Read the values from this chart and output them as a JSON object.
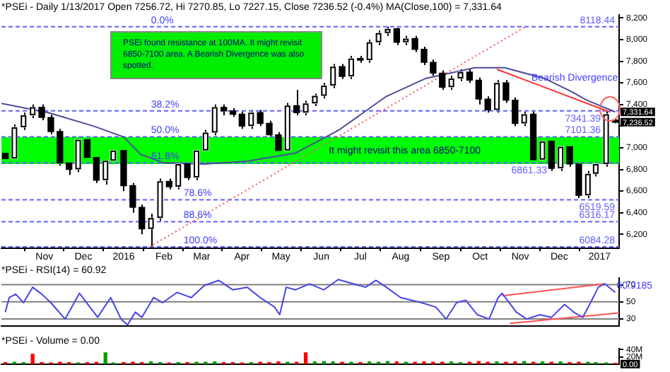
{
  "chart_data": [
    {
      "type": "candlestick",
      "title": "*PSEi - Daily 1/13/2017 Open 7256.72, Hi 7270.85, Lo 7227.15, Close 7236.52 (-0.4%) MA(Close,100) = 7,331.64",
      "color": "#000000",
      "colors": [
        "#000000",
        "#ffffff",
        "#ffffff",
        "#ffffff",
        "#000000",
        "#000000",
        "#000000",
        "#000000",
        "#ffffff",
        "#000000",
        "#000000",
        "#ffffff",
        "#ffffff",
        "#000000",
        "#000000",
        "#000000",
        "#ffffff",
        "#ffffff",
        "#000000",
        "#ffffff",
        "#000000",
        "#ffffff",
        "#ffffff",
        "#ffffff",
        "#000000",
        "#000000",
        "#000000",
        "#ffffff",
        "#000000",
        "#000000",
        "#000000",
        "#ffffff",
        "#000000",
        "#ffffff",
        "#ffffff",
        "#ffffff",
        "#ffffff",
        "#000000",
        "#ffffff",
        "#000000",
        "#ffffff",
        "#ffffff",
        "#ffffff",
        "#000000",
        "#ffffff",
        "#000000",
        "#000000",
        "#000000",
        "#000000",
        "#ffffff",
        "#ffffff",
        "#000000",
        "#000000",
        "#000000",
        "#ffffff",
        "#000000",
        "#000000",
        "#ffffff",
        "#000000",
        "#ffffff",
        "#000000",
        "#ffffff",
        "#000000",
        "#000000",
        "#ffffff",
        "#ffffff",
        "#ffffff",
        "#000000"
      ],
      "x": [
        "2015-10-02",
        "2015-10-09",
        "2015-10-16",
        "2015-10-23",
        "2015-10-30",
        "2015-11-06",
        "2015-11-13",
        "2015-11-20",
        "2015-11-27",
        "2015-12-04",
        "2015-12-11",
        "2015-12-18",
        "2015-12-24",
        "2016-01-01",
        "2016-01-08",
        "2016-01-15",
        "2016-01-22",
        "2016-01-29",
        "2016-02-05",
        "2016-02-12",
        "2016-02-19",
        "2016-02-26",
        "2016-03-04",
        "2016-03-11",
        "2016-03-18",
        "2016-03-25",
        "2016-04-01",
        "2016-04-08",
        "2016-04-15",
        "2016-04-22",
        "2016-04-29",
        "2016-05-06",
        "2016-05-13",
        "2016-05-20",
        "2016-05-27",
        "2016-06-03",
        "2016-06-10",
        "2016-06-17",
        "2016-06-24",
        "2016-07-01",
        "2016-07-08",
        "2016-07-15",
        "2016-07-22",
        "2016-07-29",
        "2016-08-05",
        "2016-08-12",
        "2016-08-19",
        "2016-08-26",
        "2016-09-02",
        "2016-09-09",
        "2016-09-16",
        "2016-09-23",
        "2016-09-30",
        "2016-10-07",
        "2016-10-14",
        "2016-10-21",
        "2016-10-28",
        "2016-11-04",
        "2016-11-11",
        "2016-11-18",
        "2016-11-25",
        "2016-12-02",
        "2016-12-09",
        "2016-12-16",
        "2016-12-23",
        "2016-12-29",
        "2017-01-06",
        "2017-01-13"
      ],
      "ohlc": [
        [
          6950,
          6975,
          6875,
          6900
        ],
        [
          6900,
          7215,
          6875,
          7190
        ],
        [
          7190,
          7325,
          7165,
          7300
        ],
        [
          7300,
          7400,
          7275,
          7375
        ],
        [
          7375,
          7400,
          7255,
          7280
        ],
        [
          7280,
          7305,
          7125,
          7150
        ],
        [
          7150,
          7175,
          6835,
          6860
        ],
        [
          6860,
          6885,
          6750,
          6800
        ],
        [
          6800,
          7100,
          6775,
          7075
        ],
        [
          7075,
          7100,
          6885,
          6910
        ],
        [
          6910,
          6935,
          6675,
          6700
        ],
        [
          6700,
          6905,
          6660,
          6880
        ],
        [
          6880,
          7000,
          6855,
          6975
        ],
        [
          6975,
          7000,
          6600,
          6650
        ],
        [
          6650,
          6675,
          6400,
          6450
        ],
        [
          6450,
          6475,
          6200,
          6250
        ],
        [
          6250,
          6390,
          6084.28,
          6350
        ],
        [
          6350,
          6715,
          6325,
          6690
        ],
        [
          6690,
          6715,
          6615,
          6640
        ],
        [
          6640,
          6875,
          6615,
          6850
        ],
        [
          6850,
          6875,
          6700,
          6725
        ],
        [
          6725,
          7000,
          6700,
          6975
        ],
        [
          6975,
          7165,
          6950,
          7140
        ],
        [
          7140,
          7400,
          7115,
          7375
        ],
        [
          7375,
          7400,
          7300,
          7340
        ],
        [
          7340,
          7365,
          7285,
          7310
        ],
        [
          7310,
          7335,
          7175,
          7200
        ],
        [
          7200,
          7350,
          7175,
          7325
        ],
        [
          7325,
          7350,
          7200,
          7225
        ],
        [
          7225,
          7250,
          7100,
          7120
        ],
        [
          7120,
          7145,
          6950,
          6975
        ],
        [
          6975,
          7415,
          6950,
          7390
        ],
        [
          7390,
          7535,
          7300,
          7325
        ],
        [
          7325,
          7435,
          7300,
          7410
        ],
        [
          7410,
          7500,
          7385,
          7480
        ],
        [
          7480,
          7600,
          7455,
          7575
        ],
        [
          7575,
          7775,
          7550,
          7750
        ],
        [
          7750,
          7775,
          7635,
          7660
        ],
        [
          7660,
          7850,
          7635,
          7825
        ],
        [
          7825,
          7850,
          7785,
          7810
        ],
        [
          7810,
          8000,
          7785,
          7975
        ],
        [
          7975,
          8085,
          7950,
          8060
        ],
        [
          8060,
          8118.44,
          8035,
          8100
        ],
        [
          8100,
          8110,
          7950,
          7975
        ],
        [
          7975,
          8035,
          7950,
          8010
        ],
        [
          8010,
          8035,
          7885,
          7910
        ],
        [
          7910,
          7935,
          7765,
          7790
        ],
        [
          7790,
          7815,
          7665,
          7690
        ],
        [
          7690,
          7715,
          7535,
          7560
        ],
        [
          7560,
          7665,
          7535,
          7640
        ],
        [
          7640,
          7725,
          7615,
          7700
        ],
        [
          7700,
          7725,
          7600,
          7625
        ],
        [
          7625,
          7650,
          7400,
          7450
        ],
        [
          7450,
          7475,
          7325,
          7350
        ],
        [
          7350,
          7625,
          7325,
          7600
        ],
        [
          7600,
          7625,
          7415,
          7440
        ],
        [
          7440,
          7465,
          7200,
          7225
        ],
        [
          7225,
          7335,
          7200,
          7310
        ],
        [
          7310,
          7335,
          6865,
          6890
        ],
        [
          6890,
          7085,
          6865,
          7060
        ],
        [
          7060,
          7085,
          6785,
          6810
        ],
        [
          6810,
          7035,
          6785,
          7010
        ],
        [
          7010,
          7035,
          6825,
          6850
        ],
        [
          6850,
          6875,
          6535,
          6560
        ],
        [
          6560,
          6785,
          6535,
          6760
        ],
        [
          6760,
          6875,
          6735,
          6850
        ],
        [
          6850,
          7335,
          6825,
          7310
        ],
        [
          7256.72,
          7270.85,
          7227.15,
          7236.52
        ]
      ],
      "series": [
        {
          "type": "line",
          "color": "#4b4b9b",
          "x": [
            "2015-09-29",
            "2015-11-04",
            "2015-12-09",
            "2016-01-01",
            "2016-01-14",
            "2016-02-01",
            "2016-03-03",
            "2016-04-05",
            "2016-05-12",
            "2016-06-14",
            "2016-07-21",
            "2016-08-20",
            "2016-09-27",
            "2016-10-20",
            "2016-11-20",
            "2016-12-11",
            "2016-12-22",
            "2017-01-13"
          ],
          "values": [
            7410,
            7325,
            7200,
            7100,
            6940,
            6860,
            6850,
            6875,
            6950,
            7160,
            7475,
            7640,
            7740,
            7740,
            7640,
            7515,
            7440,
            7331.64
          ]
        },
        {
          "type": "line",
          "color": "#ff5050",
          "line_style": "dotted",
          "x": [
            "2016-01-21",
            "2016-11-06"
          ],
          "values": [
            6084.28,
            8125
          ]
        },
        {
          "type": "line",
          "color": "#ff3030",
          "x": [
            "2016-10-14",
            "2017-01-09"
          ],
          "values": [
            7725,
            7330
          ]
        }
      ],
      "xlim": [
        "2015-09-29",
        "2017-01-16"
      ],
      "xticks": [
        {
          "value": "2015-11-01",
          "label": "Nov"
        },
        {
          "value": "2015-12-01",
          "label": "Dec"
        },
        {
          "value": "2016-01-01",
          "label": "2016"
        },
        {
          "value": "2016-02-01",
          "label": "Feb"
        },
        {
          "value": "2016-03-01",
          "label": "Mar"
        },
        {
          "value": "2016-04-01",
          "label": "Apr"
        },
        {
          "value": "2016-05-01",
          "label": "May"
        },
        {
          "value": "2016-06-01",
          "label": "Jun"
        },
        {
          "value": "2016-07-01",
          "label": "Jul"
        },
        {
          "value": "2016-08-01",
          "label": "Aug"
        },
        {
          "value": "2016-09-01",
          "label": "Sep"
        },
        {
          "value": "2016-10-01",
          "label": "Oct"
        },
        {
          "value": "2016-11-01",
          "label": "Nov"
        },
        {
          "value": "2016-12-01",
          "label": "Dec"
        },
        {
          "value": "2017-01-01",
          "label": "2017"
        }
      ],
      "ylim": [
        6070,
        8230
      ],
      "yticks": [
        {
          "value": 6200,
          "label": "6,200"
        },
        {
          "value": 6400,
          "label": "6,400"
        },
        {
          "value": 6600,
          "label": "6,600"
        },
        {
          "value": 6800,
          "label": "6,800"
        },
        {
          "value": 7000,
          "label": "7,000"
        },
        {
          "value": 7200,
          "label": null
        },
        {
          "value": 7400,
          "label": "7,400"
        },
        {
          "value": 7600,
          "label": "7,600"
        },
        {
          "value": 7800,
          "label": "7,800"
        },
        {
          "value": 8000,
          "label": "8,000"
        },
        {
          "value": 8200,
          "label": "8,200"
        }
      ],
      "ref_lines": [
        {
          "axis": "y",
          "value": 8118.44,
          "label": "8118.44",
          "color": "#6060ff",
          "line_style": "dashed"
        },
        {
          "axis": "y",
          "value": 7341.39,
          "label": "7341.39",
          "color": "#6060ff",
          "line_style": "dashed"
        },
        {
          "axis": "y",
          "value": 7101.36,
          "label": "7101.36",
          "color": "#6060ff",
          "line_style": "dashed"
        },
        {
          "axis": "y",
          "value": 6861.33,
          "label": "6861.33",
          "color": "#6060ff",
          "line_style": "dashed"
        },
        {
          "axis": "y",
          "value": 6519.59,
          "label": "6519.59",
          "color": "#6060ff",
          "line_style": "dashed"
        },
        {
          "axis": "y",
          "value": 6316.17,
          "label": "6316.17",
          "color": "#6060ff",
          "line_style": "dashed"
        },
        {
          "axis": "y",
          "value": 6084.28,
          "label": "6084.28",
          "color": "#6060ff",
          "line_style": "dashed"
        }
      ],
      "bands": [
        {
          "axis": "y",
          "from": 6850,
          "to": 7100,
          "label": "It might revisit this area 6850-7100",
          "color": "#00ff00"
        }
      ],
      "annotations": [
        "PSEi found resistance at 100MA. It might revisit 6850-7100 area. A Bearish Divergence was also spotted.",
        "Bearish Divergence",
        {
          "text": "0.0%",
          "x": "2016-01-21",
          "y": 8118.44
        },
        {
          "text": "38.2%",
          "x": "2016-01-21",
          "y": 7341.39
        },
        {
          "text": "50.0%",
          "x": "2016-01-21",
          "y": 7101.36
        },
        {
          "text": "61.8%",
          "x": "2016-01-21",
          "y": 6861.33
        },
        {
          "text": "78.6%",
          "x": "2016-02-15",
          "y": 6519.59
        },
        {
          "text": "88.6%",
          "x": "2016-02-15",
          "y": 6316.17
        },
        {
          "text": "100.0%",
          "x": "2016-02-15",
          "y": 6084.28
        },
        {
          "text": "7,331.64",
          "x": "2017-01-13",
          "y": 7331.64
        },
        {
          "text": "7,236.52",
          "x": "2017-01-13",
          "y": 7236.52
        }
      ]
    },
    {
      "type": "line",
      "title": "*PSEi - RSI(14) = 60.92",
      "tick_labels": "y",
      "series": [
        {
          "color": "#4646e6",
          "x": [
            "2015-10-02",
            "2015-10-05",
            "2015-10-10",
            "2015-10-16",
            "2015-10-23",
            "2015-10-30",
            "2015-11-06",
            "2015-11-17",
            "2015-11-24",
            "2015-11-28",
            "2015-12-05",
            "2015-12-12",
            "2015-12-22",
            "2015-12-30",
            "2016-01-04",
            "2016-01-10",
            "2016-01-15",
            "2016-01-24",
            "2016-01-31",
            "2016-02-11",
            "2016-02-22",
            "2016-03-03",
            "2016-03-14",
            "2016-03-25",
            "2016-04-05",
            "2016-04-15",
            "2016-04-26",
            "2016-04-30",
            "2016-05-05",
            "2016-05-12",
            "2016-05-23",
            "2016-06-03",
            "2016-06-14",
            "2016-07-05",
            "2016-07-13",
            "2016-07-21",
            "2016-08-01",
            "2016-08-17",
            "2016-08-28",
            "2016-09-05",
            "2016-09-13",
            "2016-09-20",
            "2016-09-29",
            "2016-10-08",
            "2016-10-15",
            "2016-10-18",
            "2016-10-29",
            "2016-11-06",
            "2016-11-16",
            "2016-11-25",
            "2016-12-05",
            "2016-12-13",
            "2016-12-19",
            "2016-12-24",
            "2016-12-31",
            "2017-01-05",
            "2017-01-13"
          ],
          "values": [
            38,
            55,
            59,
            49,
            67,
            59,
            49,
            30,
            49,
            60,
            46,
            32,
            55,
            30,
            23,
            38,
            32,
            55,
            49,
            61,
            55,
            69,
            75,
            64,
            67,
            55,
            44,
            35,
            67,
            64,
            71,
            64,
            76,
            67,
            75,
            67,
            55,
            49,
            44,
            30,
            49,
            52,
            35,
            30,
            55,
            60,
            38,
            30,
            35,
            32,
            47,
            37,
            32,
            46,
            67,
            71,
            60.92
          ]
        },
        {
          "color": "#ff5050",
          "x": [
            "2016-10-18",
            "2017-01-05"
          ],
          "values": [
            57,
            71
          ]
        },
        {
          "color": "#ff5050",
          "x": [
            "2016-10-24",
            "2017-01-16"
          ],
          "values": [
            25,
            37
          ]
        }
      ],
      "xlim": [
        "2015-09-29",
        "2017-01-16"
      ],
      "ylim": [
        22,
        78
      ],
      "yticks": [
        30,
        50,
        70
      ],
      "ref_lines": [
        {
          "axis": "y",
          "value": 30,
          "color": "#808080"
        },
        {
          "axis": "y",
          "value": 50,
          "color": "#808080"
        },
        {
          "axis": "y",
          "value": 70,
          "color": "#808080"
        }
      ],
      "annotations": [
        {
          "text": "60.9185",
          "x": "2017-01-13",
          "y": 60.9185
        }
      ]
    },
    {
      "type": "bar",
      "title": "*PSEi - Volume = 0.00",
      "tick_labels": "y",
      "x": [
        "2015-10-02",
        "2015-10-09",
        "2015-10-16",
        "2015-10-23",
        "2015-10-30",
        "2015-11-06",
        "2015-11-13",
        "2015-11-20",
        "2015-11-27",
        "2015-12-04",
        "2015-12-11",
        "2015-12-18",
        "2015-12-24",
        "2016-01-01",
        "2016-01-08",
        "2016-01-15",
        "2016-01-22",
        "2016-01-29",
        "2016-02-05",
        "2016-02-12",
        "2016-02-19",
        "2016-02-26",
        "2016-03-04",
        "2016-03-11",
        "2016-03-18",
        "2016-03-25",
        "2016-04-01",
        "2016-04-08",
        "2016-04-15",
        "2016-04-22",
        "2016-04-29",
        "2016-05-06",
        "2016-05-13",
        "2016-05-20",
        "2016-05-27",
        "2016-06-03",
        "2016-06-10",
        "2016-06-17",
        "2016-06-24",
        "2016-07-01",
        "2016-07-08",
        "2016-07-15",
        "2016-07-22",
        "2016-07-29",
        "2016-08-05",
        "2016-08-12",
        "2016-08-19",
        "2016-08-26",
        "2016-09-02",
        "2016-09-09",
        "2016-09-16",
        "2016-09-23",
        "2016-09-30",
        "2016-10-07",
        "2016-10-14",
        "2016-10-21",
        "2016-10-28",
        "2016-11-04",
        "2016-11-11",
        "2016-11-18",
        "2016-11-25",
        "2016-12-02",
        "2016-12-09",
        "2016-12-16",
        "2016-12-23",
        "2016-12-29",
        "2017-01-06",
        "2017-01-13"
      ],
      "values": [
        4,
        5,
        4,
        27,
        4,
        3,
        5,
        4,
        3,
        4,
        5,
        31,
        3,
        4,
        5,
        4,
        6,
        4,
        3,
        4,
        4,
        5,
        5,
        6,
        4,
        4,
        3,
        4,
        5,
        4,
        6,
        5,
        5,
        31,
        6,
        7,
        6,
        5,
        5,
        4,
        6,
        5,
        7,
        6,
        5,
        5,
        6,
        5,
        5,
        6,
        4,
        5,
        7,
        5,
        6,
        5,
        6,
        7,
        5,
        6,
        5,
        6,
        4,
        5,
        5,
        4,
        3,
        2
      ],
      "colors": [
        "#ff0000",
        "#00a000",
        "#00a000",
        "#ff0000",
        "#ff0000",
        "#ff0000",
        "#ff0000",
        "#ff0000",
        "#00a000",
        "#ff0000",
        "#ff0000",
        "#00a000",
        "#00a000",
        "#ff0000",
        "#ff0000",
        "#ff0000",
        "#00a000",
        "#00a000",
        "#ff0000",
        "#00a000",
        "#ff0000",
        "#00a000",
        "#00a000",
        "#00a000",
        "#ff0000",
        "#ff0000",
        "#ff0000",
        "#00a000",
        "#ff0000",
        "#ff0000",
        "#ff0000",
        "#00a000",
        "#ff0000",
        "#ff0000",
        "#00a000",
        "#00a000",
        "#00a000",
        "#ff0000",
        "#00a000",
        "#ff0000",
        "#00a000",
        "#00a000",
        "#00a000",
        "#ff0000",
        "#00a000",
        "#ff0000",
        "#ff0000",
        "#ff0000",
        "#ff0000",
        "#00a000",
        "#00a000",
        "#ff0000",
        "#ff0000",
        "#ff0000",
        "#00a000",
        "#ff0000",
        "#ff0000",
        "#00a000",
        "#ff0000",
        "#00a000",
        "#ff0000",
        "#00a000",
        "#ff0000",
        "#ff0000",
        "#00a000",
        "#00a000",
        "#00a000",
        "#ff0000"
      ],
      "xlim": [
        "2015-09-29",
        "2017-01-16"
      ],
      "ylim": [
        0,
        43
      ],
      "yticks": [
        {
          "value": 20,
          "label": "20M"
        },
        {
          "value": 40,
          "label": "40M"
        }
      ],
      "annotations": [
        {
          "text": "0.00",
          "x": "2017-01-13",
          "y": 0
        }
      ]
    }
  ]
}
